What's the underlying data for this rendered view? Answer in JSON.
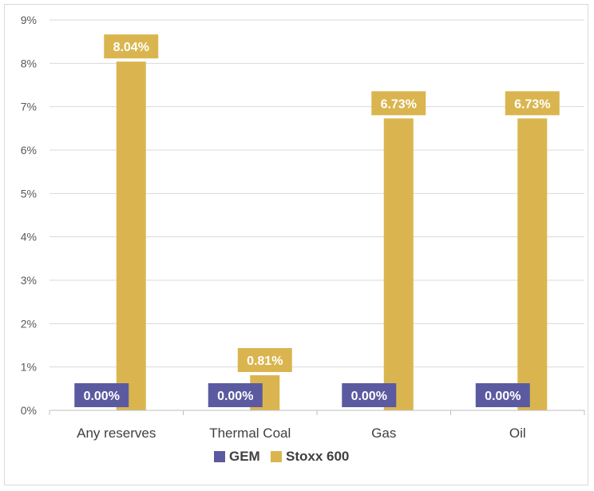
{
  "chart_data": {
    "type": "bar",
    "categories": [
      "Any reserves",
      "Thermal Coal",
      "Gas",
      "Oil"
    ],
    "series": [
      {
        "name": "GEM",
        "values": [
          0.0,
          0.0,
          0.0,
          0.0
        ],
        "labels": [
          "0.00%",
          "0.00%",
          "0.00%",
          "0.00%"
        ],
        "color": "#5b5aa0"
      },
      {
        "name": "Stoxx 600",
        "values": [
          8.04,
          0.81,
          6.73,
          6.73
        ],
        "labels": [
          "8.04%",
          "0.81%",
          "6.73%",
          "6.73%"
        ],
        "color": "#dab54f"
      }
    ],
    "ylim": [
      0,
      9
    ],
    "yticks": [
      0,
      1,
      2,
      3,
      4,
      5,
      6,
      7,
      8,
      9
    ],
    "ytick_labels": [
      "0%",
      "1%",
      "2%",
      "3%",
      "4%",
      "5%",
      "6%",
      "7%",
      "8%",
      "9%"
    ],
    "grid": true,
    "legend_position": "bottom",
    "title": "",
    "xlabel": "",
    "ylabel": ""
  }
}
